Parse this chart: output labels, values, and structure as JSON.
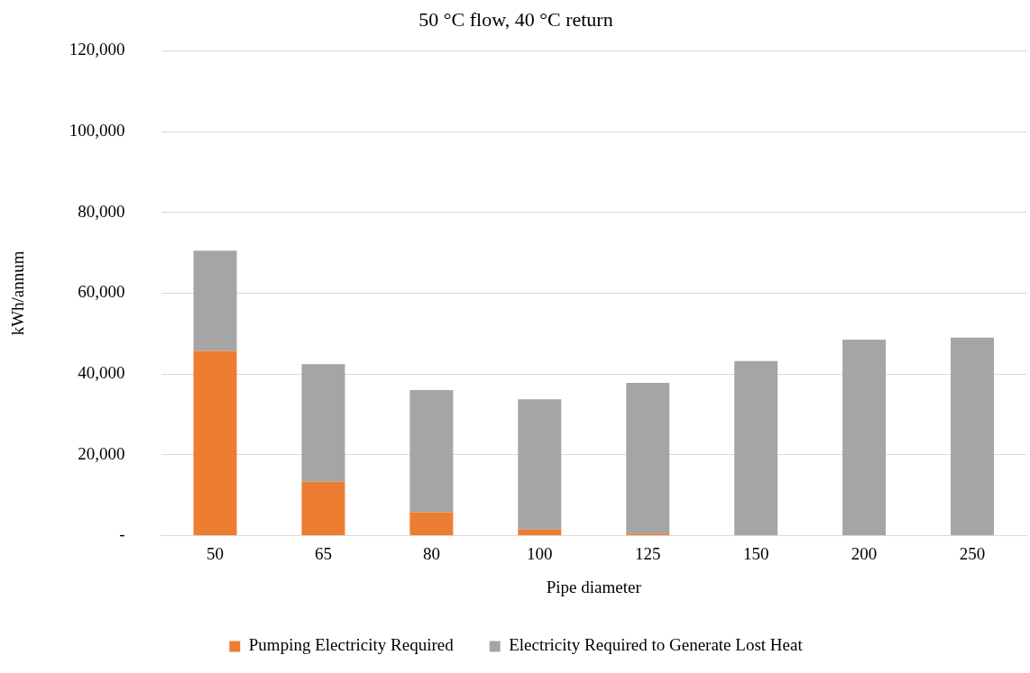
{
  "chart_data": {
    "type": "bar",
    "title": "50 °C flow, 40 °C return",
    "xlabel": "Pipe diameter",
    "ylabel": "kWh/annum",
    "categories": [
      "50",
      "65",
      "80",
      "100",
      "125",
      "150",
      "200",
      "250"
    ],
    "stacked": true,
    "series": [
      {
        "name": "Pumping Electricity Required",
        "color": "#ed7d31",
        "values": [
          45700,
          13300,
          5800,
          1500,
          500,
          0,
          0,
          0
        ]
      },
      {
        "name": "Electricity Required to Generate Lost Heat",
        "color": "#a5a5a5",
        "values": [
          24800,
          29100,
          30200,
          32200,
          37300,
          43200,
          48500,
          49000
        ]
      }
    ],
    "ylim": [
      0,
      120000
    ],
    "yticks": [
      {
        "value": 0,
        "label": "-"
      },
      {
        "value": 20000,
        "label": "20,000"
      },
      {
        "value": 40000,
        "label": "40,000"
      },
      {
        "value": 60000,
        "label": "60,000"
      },
      {
        "value": 80000,
        "label": "80,000"
      },
      {
        "value": 100000,
        "label": "100,000"
      },
      {
        "value": 120000,
        "label": "120,000"
      }
    ],
    "grid": "y",
    "legend": "bottom"
  }
}
